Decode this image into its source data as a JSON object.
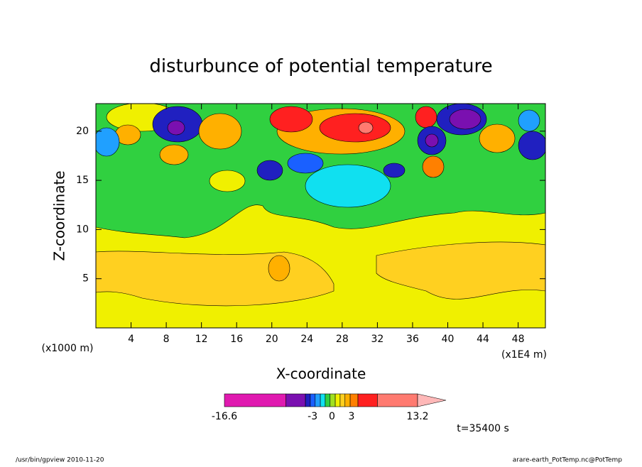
{
  "chart_data": {
    "type": "contour",
    "title": "disturbunce of potential temperature",
    "x_label": "X-coordinate",
    "y_label": "Z-coordinate",
    "x_unit_left": "(x1000 m)",
    "x_unit_right": "(x1E4 m)",
    "xlim": [
      0,
      51.1
    ],
    "xticks": [
      4,
      8,
      12,
      16,
      20,
      24,
      28,
      32,
      36,
      40,
      44,
      48
    ],
    "ylim": [
      0,
      22.8
    ],
    "yticks": [
      5,
      10,
      15,
      20
    ],
    "colorbar": {
      "lim": [
        -16.6,
        13.2
      ],
      "ticks": [
        -16.6,
        -3,
        0,
        3,
        13.2
      ],
      "levels": [
        -16.6,
        -7.1,
        -4.1,
        -3.35,
        -2.6,
        -1.8,
        -1.05,
        -0.3,
        0.5,
        1.25,
        2,
        2.8,
        4,
        7,
        13.2
      ],
      "colors": [
        "#e01ab0",
        "#7a10b0",
        "#2020c0",
        "#1a60ff",
        "#20a0ff",
        "#10e0f0",
        "#30d040",
        "#a0e020",
        "#f0f000",
        "#ffd020",
        "#ffb000",
        "#ff8000",
        "#ff2020",
        "#ff7a70"
      ],
      "extend_color": "#ffb8b8"
    },
    "time_label": "t=35400 s",
    "footer_left": "/usr/bin/gpview  2010-11-20",
    "footer_right": "arare-earth_PotTemp.nc@PotTemp"
  }
}
